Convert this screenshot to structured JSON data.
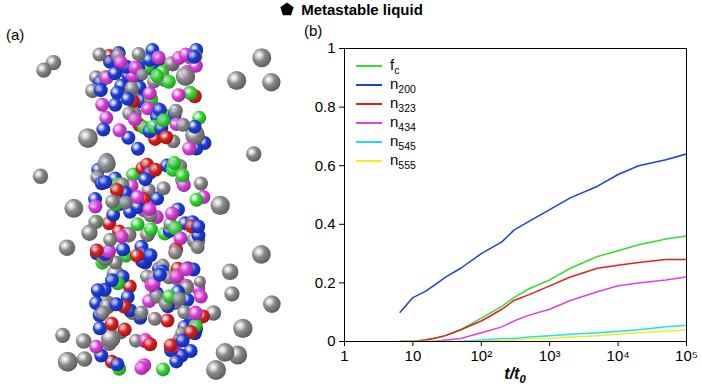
{
  "chart_data": {
    "type": "line",
    "title": "Metastable liquid",
    "image_panel_label": "(a)",
    "panel_label": "(b)",
    "x_label": "t/t0",
    "y_label": null,
    "log": "x",
    "grid": false,
    "legend": "upper left",
    "xlim": [
      1,
      100000
    ],
    "xticks": [
      1,
      10,
      {
        "value": 100,
        "label": "10²"
      },
      {
        "value": 1000,
        "label": "10³"
      },
      {
        "value": 10000,
        "label": "10⁴"
      },
      {
        "value": 100000,
        "label": "10⁵"
      }
    ],
    "ylim": [
      0,
      1
    ],
    "yticks": [
      0,
      0.2,
      0.4,
      0.6,
      0.8,
      1
    ],
    "x": [
      6.5,
      10,
      15,
      20,
      30,
      50,
      100,
      200,
      300,
      500,
      1000,
      2000,
      5000,
      10000,
      20000,
      50000,
      100000
    ],
    "series": [
      {
        "name": "fc",
        "color": "#33dd33",
        "values": [
          0,
          0,
          0.005,
          0.01,
          0.02,
          0.04,
          0.08,
          0.12,
          0.15,
          0.18,
          0.21,
          0.25,
          0.29,
          0.31,
          0.33,
          0.35,
          0.36
        ]
      },
      {
        "name": "n200",
        "color": "#1f3fe0",
        "values": [
          0.1,
          0.15,
          0.17,
          0.19,
          0.22,
          0.25,
          0.3,
          0.34,
          0.38,
          0.41,
          0.45,
          0.49,
          0.53,
          0.57,
          0.6,
          0.62,
          0.64
        ]
      },
      {
        "name": "n323",
        "color": "#e02020",
        "values": [
          0,
          0,
          0.005,
          0.01,
          0.02,
          0.04,
          0.07,
          0.11,
          0.14,
          0.16,
          0.19,
          0.22,
          0.25,
          0.26,
          0.27,
          0.28,
          0.28
        ]
      },
      {
        "name": "n434",
        "color": "#e040e0",
        "values": [
          0,
          0,
          0,
          0,
          0.005,
          0.01,
          0.03,
          0.05,
          0.07,
          0.09,
          0.11,
          0.14,
          0.17,
          0.19,
          0.2,
          0.21,
          0.22
        ]
      },
      {
        "name": "n545",
        "color": "#20e0f0",
        "values": [
          0,
          0,
          0,
          0,
          0,
          0,
          0.005,
          0.01,
          0.01,
          0.015,
          0.02,
          0.025,
          0.03,
          0.035,
          0.04,
          0.05,
          0.055
        ]
      },
      {
        "name": "n555",
        "color": "#f0f020",
        "values": [
          0,
          0,
          0,
          0,
          0,
          0,
          0,
          0.005,
          0.005,
          0.01,
          0.01,
          0.015,
          0.02,
          0.025,
          0.03,
          0.035,
          0.04
        ]
      }
    ]
  }
}
